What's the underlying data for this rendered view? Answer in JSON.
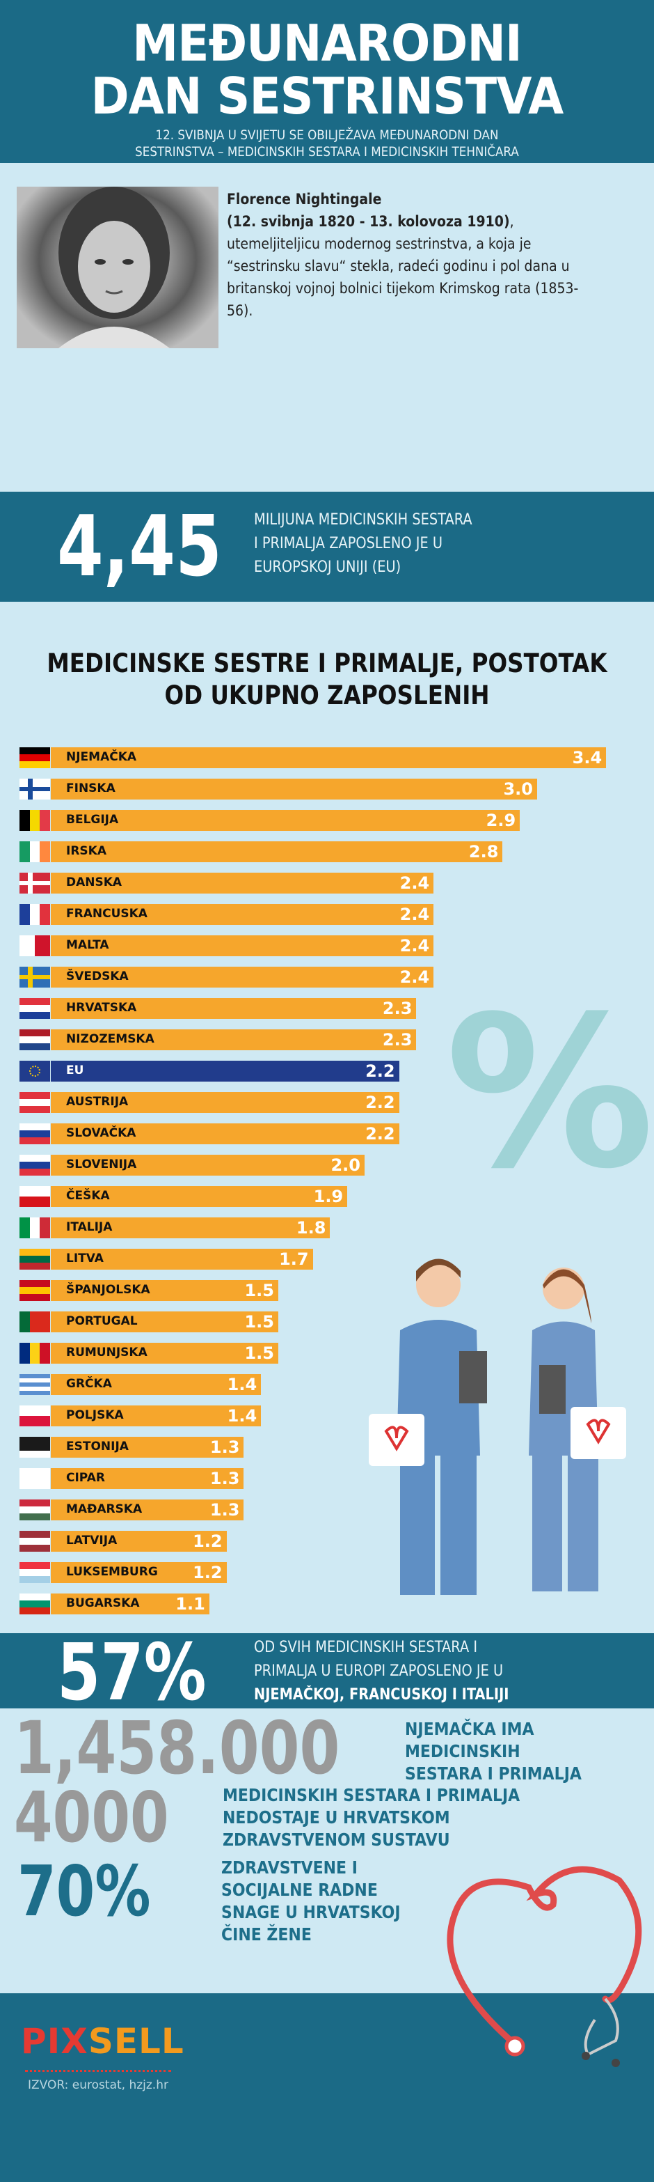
{
  "header": {
    "title_line1": "MEĐUNARODNI",
    "title_line2": "DAN SESTRINSTVA",
    "subtitle_line1": "12. SVIBNJA U SVIJETU SE OBILJEŽAVA MEĐUNARODNI DAN",
    "subtitle_line2": "SESTRINSTVA – MEDICINSKIH SESTARA I MEDICINSKIH TEHNIČARA"
  },
  "bio": {
    "name": "Florence Nightingale",
    "dates": "(12. svibnja 1820 - 13. kolovoza 1910)",
    "text": ", utemeljiteljicu modernog sestrinstva, a koja je “sestrinsku slavu“ stekla, radeći godinu i pol dana u britanskoj vojnoj bolnici tijekom Krimskog rata (1853-56)."
  },
  "stat1": {
    "number": "4,45",
    "line1": "MILIJUNA MEDICINSKIH SESTARA",
    "line2": "I PRIMALJA ZAPOSLENO JE  U",
    "line3": "EUROPSKOJ UNIJI (EU)"
  },
  "chart_data": {
    "type": "bar",
    "orientation": "horizontal",
    "title": "MEDICINSKE SESTRE I PRIMALJE, POSTOTAK OD UKUPNO ZAPOSLENIH",
    "categories": [
      "NJEMAČKA",
      "FINSKA",
      "BELGIJA",
      "IRSKA",
      "DANSKA",
      "FRANCUSKA",
      "MALTA",
      "ŠVEDSKA",
      "HRVATSKA",
      "NIZOZEMSKA",
      "EU",
      "AUSTRIJA",
      "SLOVAČKA",
      "SLOVENIJA",
      "ČEŠKA",
      "ITALIJA",
      "LITVA",
      "ŠPANJOLSKA",
      "PORTUGAL",
      "RUMUNJSKA",
      "GRČKA",
      "POLJSKA",
      "ESTONIJA",
      "CIPAR",
      "MAĐARSKA",
      "LATVIJA",
      "LUKSEMBURG",
      "BUGARSKA"
    ],
    "values": [
      3.4,
      3.0,
      2.9,
      2.8,
      2.4,
      2.4,
      2.4,
      2.4,
      2.3,
      2.3,
      2.2,
      2.2,
      2.2,
      2.0,
      1.9,
      1.8,
      1.7,
      1.5,
      1.5,
      1.5,
      1.4,
      1.4,
      1.3,
      1.3,
      1.3,
      1.2,
      1.2,
      1.1
    ],
    "value_labels": [
      "3.4",
      "3.0",
      "2.9",
      "2.8",
      "2.4",
      "2.4",
      "2.4",
      "2.4",
      "2.3",
      "2.3",
      "2.2",
      "2.2",
      "2.2",
      "2.0",
      "1.9",
      "1.8",
      "1.7",
      "1.5",
      "1.5",
      "1.5",
      "1.4",
      "1.4",
      "1.3",
      "1.3",
      "1.3",
      "1.2",
      "1.2",
      "1.1"
    ],
    "highlight": "EU",
    "bar_color": "#f6a62c",
    "highlight_color": "#213c8c"
  },
  "flags": [
    {
      "d": "h",
      "c": [
        "#000000",
        "#dd0000",
        "#ffce00"
      ]
    },
    {
      "d": "cross",
      "c": [
        "#ffffff",
        "#1a4b9b"
      ]
    },
    {
      "d": "v",
      "c": [
        "#000000",
        "#f5d800",
        "#e33a48"
      ]
    },
    {
      "d": "v",
      "c": [
        "#169b62",
        "#ffffff",
        "#ff883e"
      ]
    },
    {
      "d": "cross",
      "c": [
        "#d32b3c",
        "#ffffff"
      ]
    },
    {
      "d": "v",
      "c": [
        "#1d3f9a",
        "#ffffff",
        "#e1323d"
      ]
    },
    {
      "d": "v",
      "c": [
        "#ffffff",
        "#cf142b"
      ]
    },
    {
      "d": "cross",
      "c": [
        "#2f6fb6",
        "#f5c800"
      ]
    },
    {
      "d": "h",
      "c": [
        "#e1323d",
        "#ffffff",
        "#1d3f9a"
      ]
    },
    {
      "d": "h",
      "c": [
        "#ae1c28",
        "#ffffff",
        "#21468b"
      ]
    },
    {
      "d": "eu",
      "c": [
        "#213c8c",
        "#ffcc00"
      ]
    },
    {
      "d": "h",
      "c": [
        "#e1323d",
        "#ffffff",
        "#e1323d"
      ]
    },
    {
      "d": "h",
      "c": [
        "#ffffff",
        "#1d3f9a",
        "#e1323d"
      ]
    },
    {
      "d": "h",
      "c": [
        "#ffffff",
        "#1d3f9a",
        "#e1323d"
      ]
    },
    {
      "d": "h",
      "c": [
        "#ffffff",
        "#d7141a"
      ]
    },
    {
      "d": "v",
      "c": [
        "#009246",
        "#ffffff",
        "#ce2b37"
      ]
    },
    {
      "d": "h",
      "c": [
        "#fdb913",
        "#006a44",
        "#c1272d"
      ]
    },
    {
      "d": "h",
      "c": [
        "#c60b1e",
        "#ffc400",
        "#c60b1e"
      ]
    },
    {
      "d": "v",
      "c": [
        "#046a38",
        "#da291c",
        "#da291c"
      ]
    },
    {
      "d": "v",
      "c": [
        "#002b7f",
        "#fcd116",
        "#ce1126"
      ]
    },
    {
      "d": "h",
      "c": [
        "#5a8fd0",
        "#ffffff",
        "#5a8fd0",
        "#ffffff",
        "#5a8fd0"
      ]
    },
    {
      "d": "h",
      "c": [
        "#ffffff",
        "#dc143c"
      ]
    },
    {
      "d": "h",
      "c": [
        "#1a1a1a",
        "#1a1a1a",
        "#ffffff"
      ]
    },
    {
      "d": "h",
      "c": [
        "#ffffff"
      ]
    },
    {
      "d": "h",
      "c": [
        "#cd2a3e",
        "#ffffff",
        "#436f4d"
      ]
    },
    {
      "d": "h",
      "c": [
        "#9e3039",
        "#ffffff",
        "#9e3039"
      ]
    },
    {
      "d": "h",
      "c": [
        "#ef3340",
        "#ffffff",
        "#a4cfe6"
      ]
    },
    {
      "d": "h",
      "c": [
        "#ffffff",
        "#00966e",
        "#d62612"
      ]
    }
  ],
  "stat2": {
    "number": "57%",
    "line1": "OD SVIH MEDICINSKIH SESTARA I",
    "line2": "PRIMALJA U EUROPI ZAPOSLENO JE U",
    "line3": "NJEMAČKOJ, FRANCUSKOJ I ITALIJI"
  },
  "stat3": {
    "number": "1,458.000",
    "line1": "NJEMAČKA IMA",
    "line2": "MEDICINSKIH",
    "line3": "SESTARA I PRIMALJA"
  },
  "stat4": {
    "number": "4000",
    "line1": "MEDICINSKIH SESTARA I PRIMALJA",
    "line2": "NEDOSTAJE U HRVATSKOM",
    "line3": "ZDRAVSTVENOM SUSTAVU"
  },
  "stat5": {
    "number": "70%",
    "line1": "ZDRAVSTVENE I",
    "line2": "SOCIJALNE RADNE",
    "line3": "SNAGE U HRVATSKOJ",
    "line4": "ČINE ŽENE"
  },
  "percent_symbol": "%",
  "footer": {
    "logo_pix": "PIX",
    "logo_sell": "SELL",
    "source": "IZVOR: eurostat, hzjz.hr"
  }
}
